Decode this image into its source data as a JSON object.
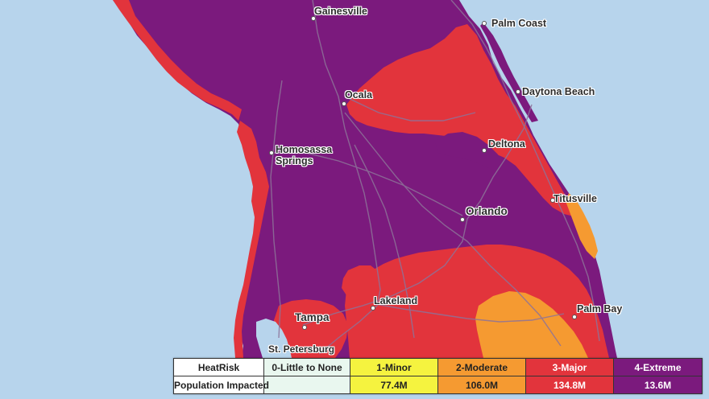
{
  "map": {
    "colors": {
      "water": "#b7d4ec",
      "category_0": "#e9f7ef",
      "category_1": "#f5f33f",
      "category_2": "#f59a31",
      "category_3": "#e2343c",
      "category_4": "#7b1a7d",
      "roads": "#8d7399"
    },
    "cities": [
      {
        "id": "gainesville",
        "name": "Gainesville"
      },
      {
        "id": "palm-coast",
        "name": "Palm Coast"
      },
      {
        "id": "ocala",
        "name": "Ocala"
      },
      {
        "id": "daytona-beach",
        "name": "Daytona Beach"
      },
      {
        "id": "homosassa-springs",
        "name": "Homosassa\nSprings"
      },
      {
        "id": "deltona",
        "name": "Deltona"
      },
      {
        "id": "titusville",
        "name": "Titusville"
      },
      {
        "id": "orlando",
        "name": "Orlando"
      },
      {
        "id": "lakeland",
        "name": "Lakeland"
      },
      {
        "id": "palm-bay",
        "name": "Palm Bay"
      },
      {
        "id": "tampa",
        "name": "Tampa"
      },
      {
        "id": "st-petersburg",
        "name": "St. Petersburg"
      }
    ]
  },
  "legend": {
    "header_label": "HeatRisk",
    "row_label": "Population Impacted",
    "categories": [
      {
        "label": "0-Little to None",
        "population": "",
        "color": "#e9f7ef",
        "text_color": "#222222"
      },
      {
        "label": "1-Minor",
        "population": "77.4M",
        "color": "#f5f33f",
        "text_color": "#222222"
      },
      {
        "label": "2-Moderate",
        "population": "106.0M",
        "color": "#f59a31",
        "text_color": "#222222"
      },
      {
        "label": "3-Major",
        "population": "134.8M",
        "color": "#e2343c",
        "text_color": "#ffffff"
      },
      {
        "label": "4-Extreme",
        "population": "13.6M",
        "color": "#7b1a7d",
        "text_color": "#ffffff"
      }
    ]
  }
}
